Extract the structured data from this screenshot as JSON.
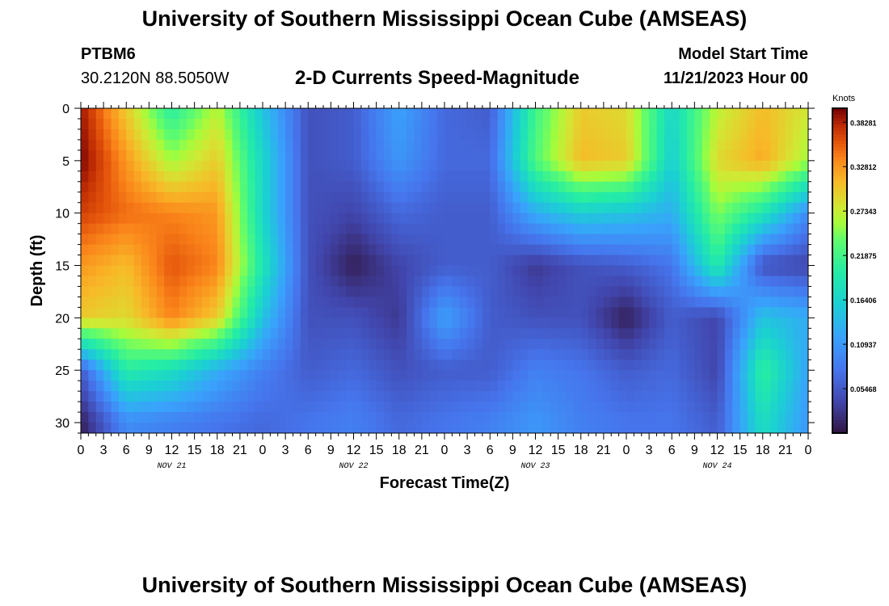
{
  "header": {
    "title": "University of Southern Mississippi Ocean Cube (AMSEAS)",
    "station_id": "PTBM6",
    "station_coords": "30.2120N  88.5050W",
    "plot_title": "2-D Currents Speed-Magnitude",
    "model_start_label": "Model Start Time",
    "model_start_value": "11/21/2023 Hour 00"
  },
  "footer": {
    "title_repeat": "University of Southern Mississippi Ocean Cube (AMSEAS)"
  },
  "chart_data": {
    "type": "heatmap",
    "xlabel": "Forecast Time(Z)",
    "ylabel": "Depth (ft)",
    "x_tick_labels": [
      "0",
      "3",
      "6",
      "9",
      "12",
      "15",
      "18",
      "21",
      "0",
      "3",
      "6",
      "9",
      "12",
      "15",
      "18",
      "21",
      "0",
      "3",
      "6",
      "9",
      "12",
      "15",
      "18",
      "21",
      "0",
      "3",
      "6",
      "9",
      "12",
      "15",
      "18",
      "21",
      "0"
    ],
    "x_day_labels": [
      "NOV 21",
      "NOV 22",
      "NOV 23",
      "NOV 24"
    ],
    "xlim_hours": [
      0,
      96
    ],
    "y_ticks": [
      0,
      5,
      10,
      15,
      20,
      25,
      30
    ],
    "ylim_ft": [
      0,
      31
    ],
    "y_inverted": true,
    "colorbar": {
      "unit": "Knots",
      "tick_labels": [
        "0.38281",
        "0.32812",
        "0.27343",
        "0.21875",
        "0.16406",
        "0.10937",
        "0.05468"
      ],
      "tick_values": [
        0.38281,
        0.32812,
        0.27343,
        0.21875,
        0.16406,
        0.10937,
        0.05468
      ],
      "range": [
        0.0,
        0.4
      ]
    },
    "hours": [
      0,
      6,
      12,
      18,
      24,
      30,
      36,
      42,
      48,
      54,
      60,
      66,
      72,
      78,
      84,
      90,
      96
    ],
    "depths": [
      0,
      5,
      10,
      15,
      20,
      25,
      30
    ],
    "values": [
      [
        0.39,
        0.3,
        0.2,
        0.27,
        0.15,
        0.05,
        0.06,
        0.12,
        0.07,
        0.06,
        0.22,
        0.3,
        0.29,
        0.17,
        0.27,
        0.31,
        0.28
      ],
      [
        0.4,
        0.33,
        0.26,
        0.3,
        0.17,
        0.05,
        0.06,
        0.11,
        0.07,
        0.07,
        0.23,
        0.31,
        0.3,
        0.16,
        0.29,
        0.32,
        0.26
      ],
      [
        0.37,
        0.35,
        0.34,
        0.33,
        0.17,
        0.05,
        0.04,
        0.07,
        0.06,
        0.06,
        0.13,
        0.16,
        0.15,
        0.13,
        0.25,
        0.19,
        0.1
      ],
      [
        0.33,
        0.31,
        0.36,
        0.34,
        0.19,
        0.05,
        0.01,
        0.04,
        0.06,
        0.06,
        0.03,
        0.05,
        0.06,
        0.08,
        0.2,
        0.05,
        0.04
      ],
      [
        0.3,
        0.29,
        0.34,
        0.3,
        0.15,
        0.05,
        0.05,
        0.03,
        0.12,
        0.06,
        0.05,
        0.05,
        0.01,
        0.06,
        0.04,
        0.15,
        0.13
      ],
      [
        0.06,
        0.2,
        0.18,
        0.13,
        0.09,
        0.06,
        0.07,
        0.05,
        0.06,
        0.06,
        0.09,
        0.08,
        0.06,
        0.07,
        0.04,
        0.21,
        0.12
      ],
      [
        0.01,
        0.1,
        0.09,
        0.08,
        0.07,
        0.08,
        0.09,
        0.07,
        0.08,
        0.09,
        0.11,
        0.09,
        0.08,
        0.08,
        0.06,
        0.18,
        0.11
      ]
    ]
  }
}
